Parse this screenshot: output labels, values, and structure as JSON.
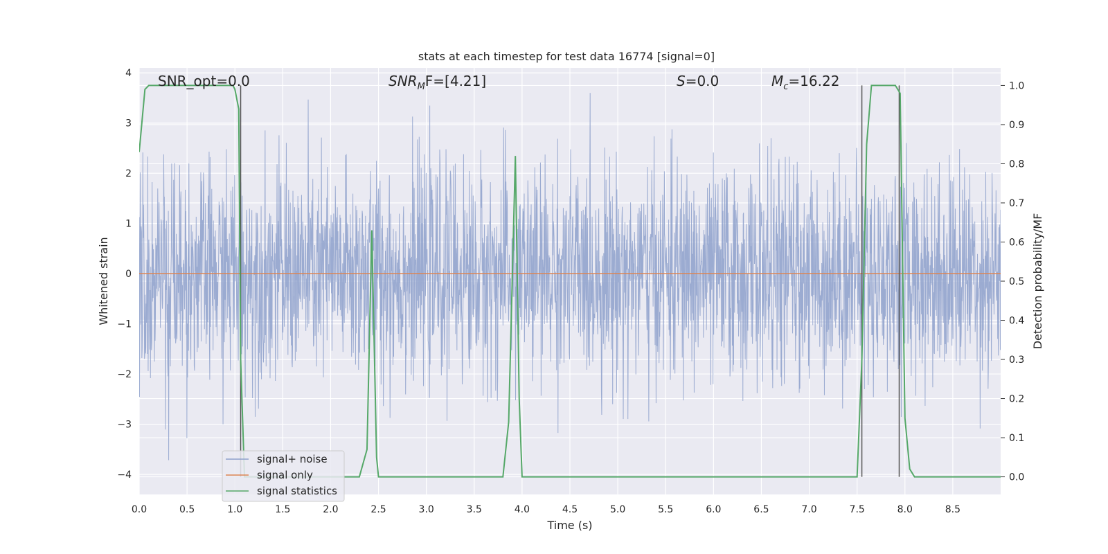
{
  "chart_data": {
    "type": "line",
    "title": "stats at each timestep for test data 16774 [signal=0]",
    "xlabel": "Time (s)",
    "ylabel": "Whitened strain",
    "y2label": "Detection probability/MF",
    "xlim": [
      0.0,
      9.0
    ],
    "ylim": [
      -4.4,
      4.1
    ],
    "y2lim": [
      -0.045,
      1.045
    ],
    "x_ticks": [
      "0.0",
      "0.5",
      "1.0",
      "1.5",
      "2.0",
      "2.5",
      "3.0",
      "3.5",
      "4.0",
      "4.5",
      "5.0",
      "5.5",
      "6.0",
      "6.5",
      "7.0",
      "7.5",
      "8.0",
      "8.5"
    ],
    "y_ticks": [
      "−4",
      "−3",
      "−2",
      "−1",
      "0",
      "1",
      "2",
      "3",
      "4"
    ],
    "y2_ticks": [
      "0.0",
      "0.1",
      "0.2",
      "0.3",
      "0.4",
      "0.5",
      "0.6",
      "0.7",
      "0.8",
      "0.9",
      "1.0"
    ],
    "grid": true,
    "legend_position": "lower-left",
    "annotations": {
      "snr_opt": "SNR_opt=0.0",
      "snr_mf_main": "SNR",
      "snr_mf_sub": "M",
      "snr_mf_tail": "F=[4.21]",
      "s_var": "S",
      "s_tail": "=0.0",
      "mc_var": "M",
      "mc_sub": "c",
      "mc_tail": "=16.22"
    },
    "series": [
      {
        "name": "signal+ noise",
        "color": "#8da0cb",
        "style": "dense noise, spikes approx -3.9 to 3.6"
      },
      {
        "name": "signal only",
        "color": "#dd8452",
        "values_constant": 0.0
      },
      {
        "name": "signal statistics",
        "color": "#55a868",
        "axis": "right",
        "x": [
          0.0,
          0.06,
          0.1,
          0.2,
          0.3,
          0.5,
          0.8,
          0.98,
          1.0,
          1.04,
          1.06,
          1.1,
          1.2,
          1.5,
          2.0,
          2.3,
          2.38,
          2.43,
          2.48,
          2.5,
          2.55,
          3.0,
          3.5,
          3.8,
          3.86,
          3.93,
          3.97,
          4.0,
          4.05,
          4.5,
          5.0,
          5.5,
          6.0,
          6.5,
          7.0,
          7.5,
          7.55,
          7.6,
          7.65,
          7.7,
          7.8,
          7.9,
          7.95,
          8.0,
          8.05,
          8.1,
          8.5,
          9.0
        ],
        "values": [
          0.83,
          0.99,
          1.0,
          1.0,
          1.0,
          1.0,
          1.0,
          1.0,
          0.99,
          0.94,
          0.3,
          0.0,
          0.0,
          0.0,
          0.0,
          0.0,
          0.07,
          0.63,
          0.05,
          0.0,
          0.0,
          0.0,
          0.0,
          0.0,
          0.14,
          0.82,
          0.2,
          0.0,
          0.0,
          0.0,
          0.0,
          0.0,
          0.0,
          0.0,
          0.0,
          0.0,
          0.3,
          0.85,
          1.0,
          1.0,
          1.0,
          1.0,
          0.98,
          0.15,
          0.02,
          0.0,
          0.0,
          0.0
        ]
      }
    ],
    "event_markers_x": [
      1.06,
      7.55,
      7.94
    ]
  }
}
